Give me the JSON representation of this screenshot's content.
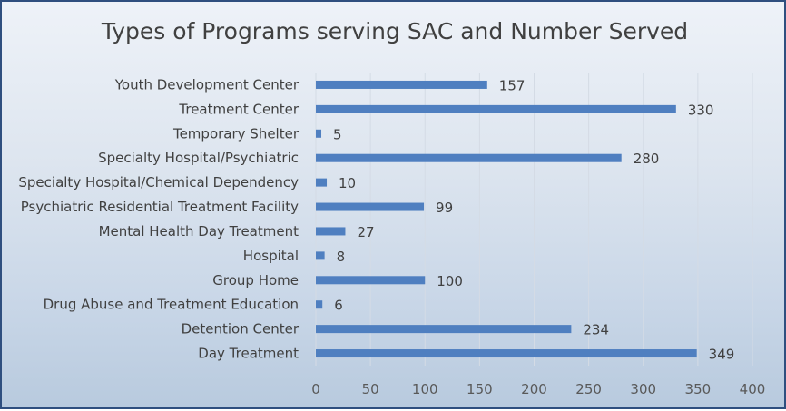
{
  "chart_data": {
    "type": "bar",
    "orientation": "horizontal",
    "title": "Types of Programs serving SAC and Number Served",
    "categories": [
      "Youth Development Center",
      "Treatment Center",
      "Temporary Shelter",
      "Specialty Hospital/Psychiatric",
      "Specialty Hospital/Chemical Dependency",
      "Psychiatric Residential Treatment Facility",
      "Mental Health Day Treatment",
      "Hospital",
      "Group Home",
      "Drug Abuse and Treatment Education",
      "Detention Center",
      "Day Treatment"
    ],
    "values": [
      157,
      330,
      5,
      280,
      10,
      99,
      27,
      8,
      100,
      6,
      234,
      349
    ],
    "xlim": [
      0,
      400
    ],
    "xticks": [
      0,
      50,
      100,
      150,
      200,
      250,
      300,
      350,
      400
    ],
    "grid": true,
    "legend": "none",
    "bar_color": "#4f7fc0"
  }
}
